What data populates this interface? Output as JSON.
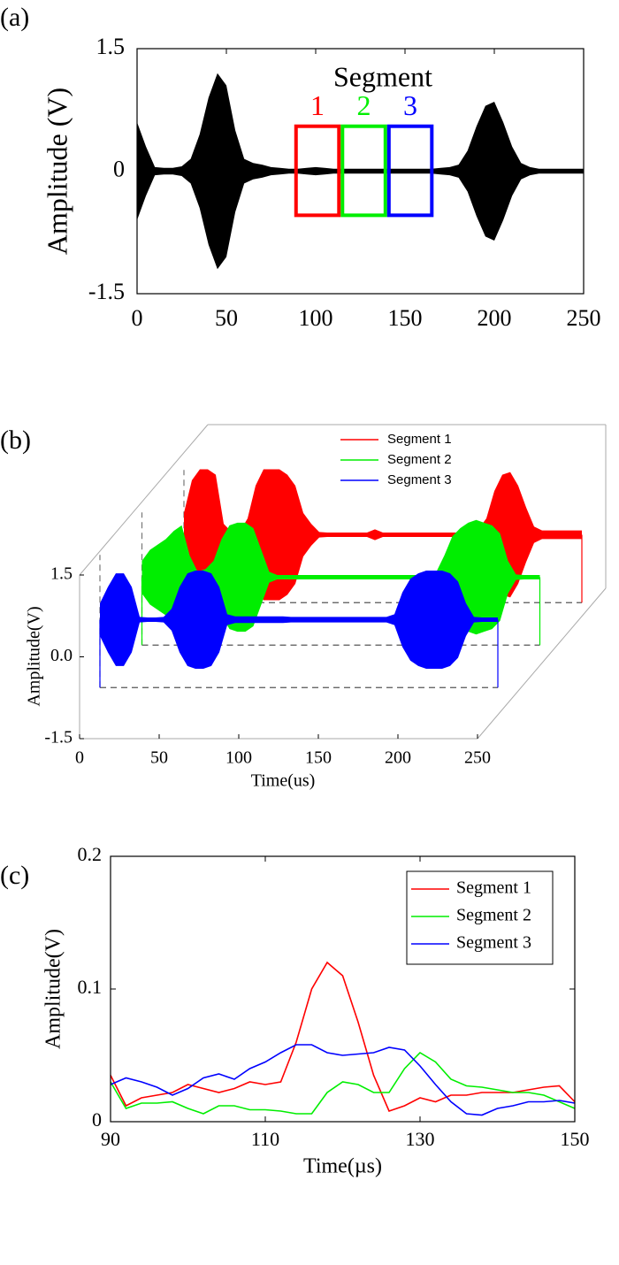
{
  "chart_data": [
    {
      "type": "area",
      "label": "(a)",
      "ylabel": "Amplitude (V)",
      "annotation": "Segment",
      "xlim": [
        0,
        250
      ],
      "xticks": [
        0,
        50,
        100,
        150,
        200,
        250
      ],
      "ylim": [
        -1.5,
        1.5
      ],
      "yticks": [
        -1.5,
        0,
        1.5
      ],
      "color": "#000000",
      "x": [
        0,
        5,
        10,
        15,
        20,
        25,
        30,
        35,
        40,
        45,
        50,
        55,
        60,
        65,
        70,
        75,
        80,
        85,
        90,
        95,
        100,
        105,
        110,
        115,
        120,
        125,
        130,
        135,
        140,
        145,
        150,
        155,
        160,
        165,
        170,
        175,
        180,
        185,
        190,
        195,
        200,
        205,
        210,
        215,
        220,
        225,
        230,
        235,
        240,
        245,
        250
      ],
      "values": [
        0.6,
        0.3,
        0.05,
        0.04,
        0.04,
        0.06,
        0.15,
        0.45,
        0.9,
        1.2,
        1.05,
        0.5,
        0.15,
        0.1,
        0.08,
        0.05,
        0.04,
        0.03,
        0.03,
        0.04,
        0.05,
        0.04,
        0.03,
        0.03,
        0.03,
        0.03,
        0.03,
        0.03,
        0.03,
        0.03,
        0.03,
        0.03,
        0.03,
        0.03,
        0.04,
        0.05,
        0.08,
        0.25,
        0.55,
        0.8,
        0.85,
        0.6,
        0.3,
        0.1,
        0.05,
        0.03,
        0.03,
        0.03,
        0.03,
        0.03,
        0.03
      ],
      "segments": [
        {
          "label": "1",
          "color": "#ff0000",
          "x": [
            88,
            114
          ],
          "y": [
            -0.54,
            0.55
          ]
        },
        {
          "label": "2",
          "color": "#00ee00",
          "x": [
            114,
            140
          ],
          "y": [
            -0.54,
            0.55
          ]
        },
        {
          "label": "3",
          "color": "#0000ff",
          "x": [
            140,
            166
          ],
          "y": [
            -0.54,
            0.55
          ]
        }
      ]
    },
    {
      "type": "line3d",
      "label": "(b)",
      "xlabel": "Time(us)",
      "ylabel": "Amplitude(V)",
      "xlim": [
        0,
        250
      ],
      "xticks": [
        0,
        50,
        100,
        150,
        200,
        250
      ],
      "ylim": [
        -1.5,
        1.5
      ],
      "yticks": [
        -1.5,
        {
          "value": 0,
          "label": "0.0"
        },
        1.5
      ],
      "x": [
        0,
        5,
        10,
        15,
        20,
        25,
        30,
        35,
        40,
        45,
        50,
        55,
        60,
        65,
        70,
        75,
        80,
        85,
        90,
        95,
        100,
        105,
        110,
        115,
        120,
        125,
        130,
        135,
        140,
        145,
        150,
        155,
        160,
        165,
        170,
        175,
        180,
        185,
        190,
        195,
        200,
        205,
        210,
        215,
        220,
        225,
        230,
        235,
        240,
        245,
        250
      ],
      "series": [
        {
          "name": "Segment 1",
          "color": "#ff0000",
          "values": [
            0.4,
            1.0,
            1.2,
            1.2,
            1.1,
            0.2,
            0.05,
            0.05,
            0.3,
            0.9,
            1.2,
            1.2,
            1.2,
            1.1,
            0.9,
            0.4,
            0.2,
            0.05,
            0.04,
            0.04,
            0.04,
            0.04,
            0.04,
            0.04,
            0.1,
            0.04,
            0.04,
            0.04,
            0.04,
            0.04,
            0.04,
            0.04,
            0.04,
            0.04,
            0.04,
            0.04,
            0.04,
            0.1,
            0.3,
            0.8,
            1.1,
            1.15,
            0.9,
            0.5,
            0.15,
            0.08,
            0.08,
            0.08,
            0.08,
            0.08,
            0.08
          ]
        },
        {
          "name": "Segment 2",
          "color": "#00ee00",
          "values": [
            0.3,
            0.5,
            0.6,
            0.7,
            0.85,
            0.95,
            0.4,
            0.1,
            0.15,
            0.3,
            0.7,
            0.95,
            1.0,
            1.0,
            0.9,
            0.5,
            0.1,
            0.04,
            0.04,
            0.04,
            0.04,
            0.04,
            0.04,
            0.04,
            0.04,
            0.04,
            0.04,
            0.04,
            0.04,
            0.04,
            0.04,
            0.04,
            0.04,
            0.04,
            0.04,
            0.04,
            0.04,
            0.1,
            0.4,
            0.75,
            0.9,
            1.0,
            1.05,
            1.0,
            0.95,
            0.8,
            0.3,
            0.05,
            0.04,
            0.04,
            0.04
          ]
        },
        {
          "name": "Segment 3",
          "color": "#0000ff",
          "values": [
            0.3,
            0.6,
            0.85,
            0.85,
            0.6,
            0.05,
            0.04,
            0.04,
            0.05,
            0.2,
            0.6,
            0.85,
            0.9,
            0.9,
            0.85,
            0.6,
            0.1,
            0.06,
            0.06,
            0.06,
            0.06,
            0.06,
            0.06,
            0.06,
            0.05,
            0.05,
            0.05,
            0.05,
            0.05,
            0.05,
            0.05,
            0.05,
            0.05,
            0.05,
            0.05,
            0.05,
            0.05,
            0.1,
            0.5,
            0.75,
            0.85,
            0.9,
            0.9,
            0.9,
            0.85,
            0.7,
            0.3,
            0.05,
            0.04,
            0.04,
            0.04
          ]
        }
      ]
    },
    {
      "type": "line",
      "label": "(c)",
      "xlabel": "Time(µs)",
      "ylabel": "Amplitude(V)",
      "xlim": [
        90,
        150
      ],
      "xticks": [
        90,
        110,
        130,
        150
      ],
      "ylim": [
        0,
        0.2
      ],
      "yticks": [
        0,
        0.1,
        0.2
      ],
      "legend": "upper right",
      "x": [
        90,
        92,
        94,
        96,
        98,
        100,
        102,
        104,
        106,
        108,
        110,
        112,
        114,
        116,
        118,
        120,
        122,
        124,
        126,
        128,
        130,
        132,
        134,
        136,
        138,
        140,
        142,
        144,
        146,
        148,
        150
      ],
      "series": [
        {
          "name": "Segment 1",
          "color": "#ff0000",
          "values": [
            0.035,
            0.012,
            0.018,
            0.02,
            0.022,
            0.028,
            0.025,
            0.022,
            0.025,
            0.03,
            0.028,
            0.03,
            0.06,
            0.1,
            0.12,
            0.11,
            0.075,
            0.035,
            0.008,
            0.012,
            0.018,
            0.015,
            0.02,
            0.02,
            0.022,
            0.022,
            0.022,
            0.024,
            0.026,
            0.027,
            0.015
          ]
        },
        {
          "name": "Segment 2",
          "color": "#00ee00",
          "values": [
            0.03,
            0.01,
            0.014,
            0.014,
            0.015,
            0.01,
            0.006,
            0.012,
            0.012,
            0.009,
            0.009,
            0.008,
            0.006,
            0.006,
            0.022,
            0.03,
            0.028,
            0.022,
            0.022,
            0.04,
            0.052,
            0.045,
            0.032,
            0.027,
            0.026,
            0.024,
            0.022,
            0.022,
            0.02,
            0.015,
            0.01
          ]
        },
        {
          "name": "Segment 3",
          "color": "#0000ff",
          "values": [
            0.028,
            0.033,
            0.03,
            0.026,
            0.02,
            0.025,
            0.033,
            0.036,
            0.032,
            0.04,
            0.045,
            0.052,
            0.058,
            0.058,
            0.052,
            0.05,
            0.051,
            0.052,
            0.056,
            0.054,
            0.042,
            0.028,
            0.015,
            0.006,
            0.005,
            0.01,
            0.012,
            0.015,
            0.015,
            0.016,
            0.014
          ]
        }
      ]
    }
  ]
}
